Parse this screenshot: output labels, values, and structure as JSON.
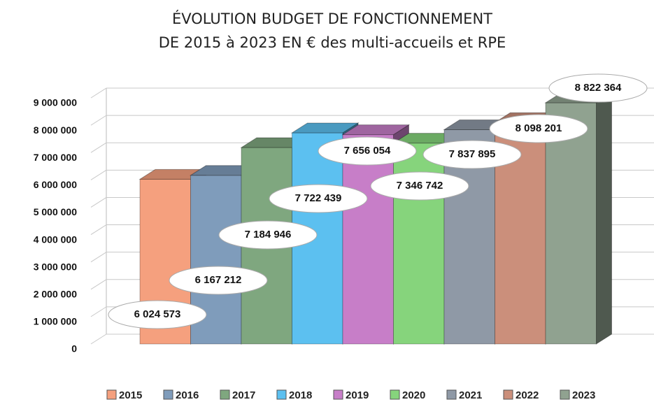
{
  "chart_data": {
    "type": "bar3d",
    "title": "ÉVOLUTION BUDGET DE FONCTIONNEMENT",
    "subtitle": "DE 2015 à 2023 EN € des multi-accueils et RPE",
    "categories": [
      "2015",
      "2016",
      "2017",
      "2018",
      "2019",
      "2020",
      "2021",
      "2022",
      "2023"
    ],
    "values": [
      6024573,
      6167212,
      7184946,
      7722439,
      7656054,
      7346742,
      7837895,
      8098201,
      8822364
    ],
    "value_labels": [
      "6 024 573",
      "6 167 212",
      "7 184 946",
      "7 722 439",
      "7 656 054",
      "7 346 742",
      "7 837 895",
      "8 098 201",
      "8 822 364"
    ],
    "colors": [
      "#f5a07e",
      "#7f9cbb",
      "#7fa77f",
      "#5cc0f0",
      "#c77ec8",
      "#86d47c",
      "#8f99a6",
      "#cb8f7b",
      "#90a290"
    ],
    "ylim": [
      0,
      9000000
    ],
    "yticks": [
      0,
      {
        "value": 1000000,
        "label": "1 000 000"
      },
      {
        "value": 2000000,
        "label": "2 000 000"
      },
      {
        "value": 3000000,
        "label": "3 000 000"
      },
      {
        "value": 4000000,
        "label": "4 000 000"
      },
      {
        "value": 5000000,
        "label": "5 000 000"
      },
      {
        "value": 6000000,
        "label": "6 000 000"
      },
      {
        "value": 7000000,
        "label": "7 000 000"
      },
      {
        "value": 8000000,
        "label": "8 000 000"
      },
      {
        "value": 9000000,
        "label": "9 000 000"
      }
    ],
    "grid": true,
    "legend": "bottom"
  }
}
